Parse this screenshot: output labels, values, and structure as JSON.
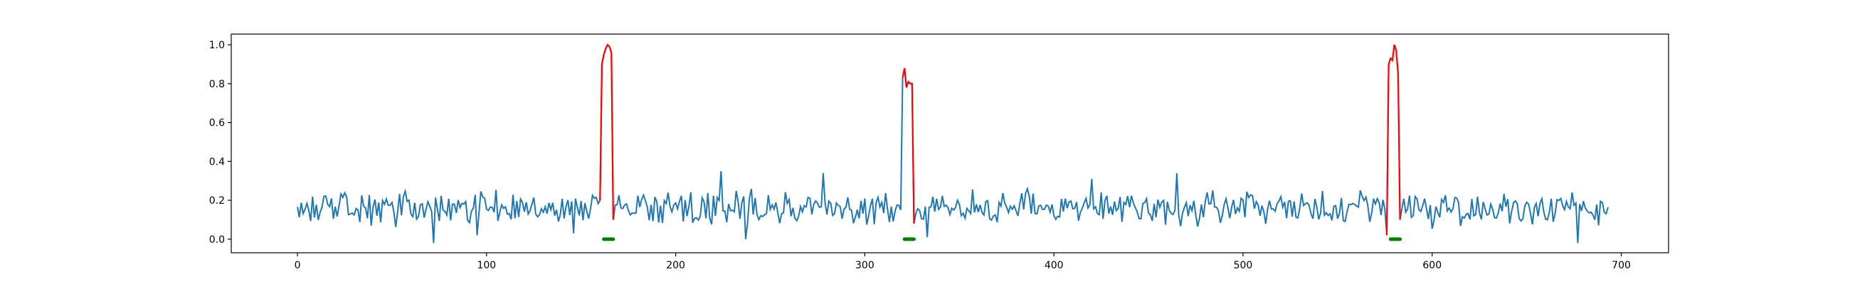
{
  "chart_data": {
    "type": "line",
    "title": "",
    "xlabel": "",
    "ylabel": "",
    "xlim": [
      -35,
      725
    ],
    "ylim": [
      -0.07,
      1.055
    ],
    "x_ticks": [
      0,
      100,
      200,
      300,
      400,
      500,
      600,
      700
    ],
    "y_ticks": [
      0.0,
      0.2,
      0.4,
      0.6,
      0.8,
      1.0
    ],
    "x_tick_labels": [
      "0",
      "100",
      "200",
      "300",
      "400",
      "500",
      "600",
      "700"
    ],
    "y_tick_labels": [
      "0.0",
      "0.2",
      "0.4",
      "0.6",
      "0.8",
      "1.0"
    ],
    "grid": false,
    "legend": "none",
    "baseline": {
      "n_points": 694,
      "mean": 0.16,
      "amplitude": 0.09,
      "notable_dips": [
        [
          72,
          -0.02
        ],
        [
          95,
          0.02
        ],
        [
          146,
          0.03
        ],
        [
          237,
          0.0
        ],
        [
          333,
          0.01
        ],
        [
          677,
          -0.02
        ]
      ],
      "notable_peaks": [
        [
          224,
          0.35
        ],
        [
          278,
          0.34
        ],
        [
          465,
          0.34
        ],
        [
          420,
          0.31
        ]
      ]
    },
    "series": [
      {
        "color": "#1f77b4",
        "style": "line",
        "anomaly_segments": [
          {
            "x": [
              160,
              161,
              162,
              163,
              164,
              165,
              166,
              167
            ],
            "y": [
              0.2,
              0.9,
              0.95,
              0.98,
              1.0,
              0.99,
              0.96,
              0.1
            ]
          },
          {
            "x": [
              320,
              321,
              322,
              323,
              324,
              325,
              326
            ],
            "y": [
              0.83,
              0.88,
              0.78,
              0.81,
              0.8,
              0.8,
              0.08
            ]
          },
          {
            "x": [
              576,
              577,
              578,
              579,
              580,
              581,
              582,
              583
            ],
            "y": [
              0.02,
              0.9,
              0.93,
              0.92,
              1.0,
              0.97,
              0.85,
              0.1
            ]
          }
        ]
      },
      {
        "color": "#ff0000",
        "style": "line",
        "segments": [
          {
            "x": [
              160,
              161,
              162,
              163,
              164,
              165,
              166,
              167
            ],
            "y": [
              0.2,
              0.9,
              0.95,
              0.98,
              1.0,
              0.99,
              0.96,
              0.1
            ]
          },
          {
            "x": [
              320,
              321,
              322,
              323,
              324,
              325,
              326
            ],
            "y": [
              0.83,
              0.88,
              0.78,
              0.81,
              0.8,
              0.8,
              0.08
            ]
          },
          {
            "x": [
              576,
              577,
              578,
              579,
              580,
              581,
              582,
              583
            ],
            "y": [
              0.02,
              0.9,
              0.93,
              0.92,
              1.0,
              0.97,
              0.85,
              0.1
            ]
          }
        ]
      },
      {
        "color": "#008000",
        "style": "markers",
        "ranges": [
          [
            162,
            167
          ],
          [
            321,
            326
          ],
          [
            578,
            583
          ]
        ],
        "y": 0.0
      }
    ]
  }
}
